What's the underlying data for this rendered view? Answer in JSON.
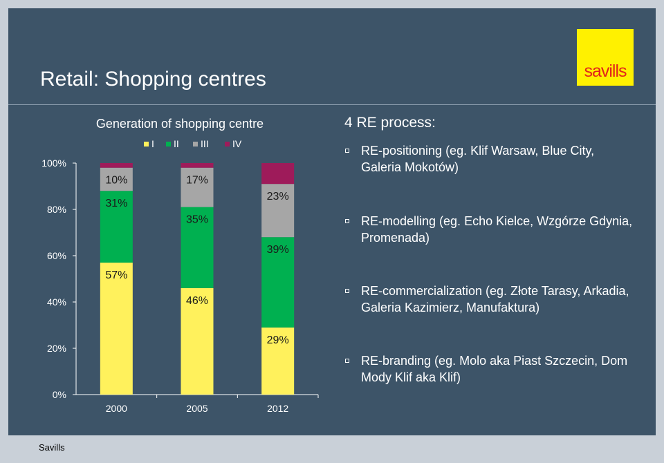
{
  "slide": {
    "title": "Retail: Shopping centres",
    "logo_text": "savills",
    "footer": "Savills"
  },
  "bullets_panel": {
    "title": "4 RE process:",
    "items": [
      {
        "text": "RE-positioning (eg. Klif Warsaw, Blue City, Galeria Mokotów)"
      },
      {
        "text": "RE-modelling (eg. Echo Kielce, Wzgórze Gdynia, Promenada)"
      },
      {
        "text": "RE-commercialization (eg. Złote Tarasy, Arkadia, Galeria Kazimierz, Manufaktura)"
      },
      {
        "text": "RE-branding (eg. Molo aka Piast Szczecin, Dom Mody Klif aka Klif)"
      }
    ]
  },
  "chart_data": {
    "type": "bar",
    "stacked": true,
    "title": "Generation of shopping centre",
    "categories": [
      "2000",
      "2005",
      "2012"
    ],
    "ylim": [
      0,
      100
    ],
    "yticks": [
      "0%",
      "20%",
      "40%",
      "60%",
      "80%",
      "100%"
    ],
    "legend_position": "top",
    "series": [
      {
        "name": "I",
        "color": "#fff15c",
        "values": [
          57,
          46,
          29
        ],
        "labels": [
          "57%",
          "46%",
          "29%"
        ]
      },
      {
        "name": "II",
        "color": "#00b050",
        "values": [
          31,
          35,
          39
        ],
        "labels": [
          "31%",
          "35%",
          "39%"
        ]
      },
      {
        "name": "III",
        "color": "#a6a6a6",
        "values": [
          10,
          17,
          23
        ],
        "labels": [
          "10%",
          "17%",
          "23%"
        ]
      },
      {
        "name": "IV",
        "color": "#9e1b5a",
        "values": [
          2,
          2,
          9
        ],
        "labels": [
          "",
          "",
          ""
        ]
      }
    ]
  }
}
